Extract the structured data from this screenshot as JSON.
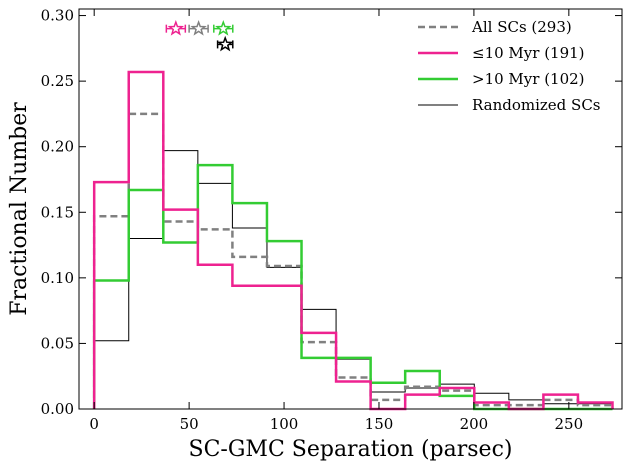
{
  "chart_data": {
    "type": "histogram",
    "xlabel": "SC-GMC Separation (parsec)",
    "ylabel": "Fractional Number",
    "xlim": [
      -8,
      278
    ],
    "ylim": [
      0,
      0.305
    ],
    "x_ticks": [
      0,
      50,
      100,
      150,
      200,
      250
    ],
    "x_tick_labels": [
      "0",
      "50",
      "100",
      "150",
      "200",
      "250"
    ],
    "y_ticks": [
      0.0,
      0.05,
      0.1,
      0.15,
      0.2,
      0.25,
      0.3
    ],
    "y_tick_labels": [
      "0.00",
      "0.05",
      "0.10",
      "0.15",
      "0.20",
      "0.25",
      "0.30"
    ],
    "legend_position": "top-right",
    "bin_edges": [
      0,
      18.2,
      36.4,
      54.6,
      72.8,
      91.0,
      109.2,
      127.4,
      145.6,
      163.8,
      182.0,
      200.2,
      218.4,
      236.6,
      254.8,
      273.0
    ],
    "series": [
      {
        "name": "All SCs (293)",
        "color": "#808080",
        "style": "dashed",
        "values": [
          0.147,
          0.225,
          0.143,
          0.137,
          0.116,
          0.109,
          0.051,
          0.024,
          0.007,
          0.017,
          0.014,
          0.003,
          0.003,
          0.007,
          0.003
        ]
      },
      {
        "name": "≤10 Myr (191)",
        "color": "#ee2290",
        "style": "solid-thick",
        "values": [
          0.173,
          0.257,
          0.152,
          0.11,
          0.094,
          0.094,
          0.058,
          0.021,
          0.0,
          0.011,
          0.016,
          0.005,
          0.0,
          0.011,
          0.005
        ]
      },
      {
        "name": ">10 Myr (102)",
        "color": "#33cc33",
        "style": "solid-thick",
        "values": [
          0.098,
          0.167,
          0.127,
          0.186,
          0.157,
          0.128,
          0.039,
          0.039,
          0.02,
          0.029,
          0.01,
          0.0,
          0.0,
          0.0,
          0.0
        ]
      },
      {
        "name": "Randomized SCs",
        "color": "#000000",
        "style": "solid-thin",
        "values": [
          0.052,
          0.13,
          0.197,
          0.172,
          0.138,
          0.108,
          0.076,
          0.038,
          0.013,
          0.016,
          0.019,
          0.012,
          0.007,
          0.004,
          0.004
        ]
      }
    ],
    "markers": [
      {
        "series": "≤10 Myr (191)",
        "x": 43,
        "y": 0.29,
        "xerr": 5,
        "color": "#ee2290"
      },
      {
        "series": "All SCs (293)",
        "x": 55,
        "y": 0.29,
        "xerr": 5,
        "color": "#808080"
      },
      {
        "series": ">10 Myr (102)",
        "x": 68,
        "y": 0.29,
        "xerr": 5,
        "color": "#33cc33"
      },
      {
        "series": "Randomized SCs",
        "x": 69,
        "y": 0.278,
        "xerr": 4,
        "color": "#000000"
      }
    ]
  }
}
